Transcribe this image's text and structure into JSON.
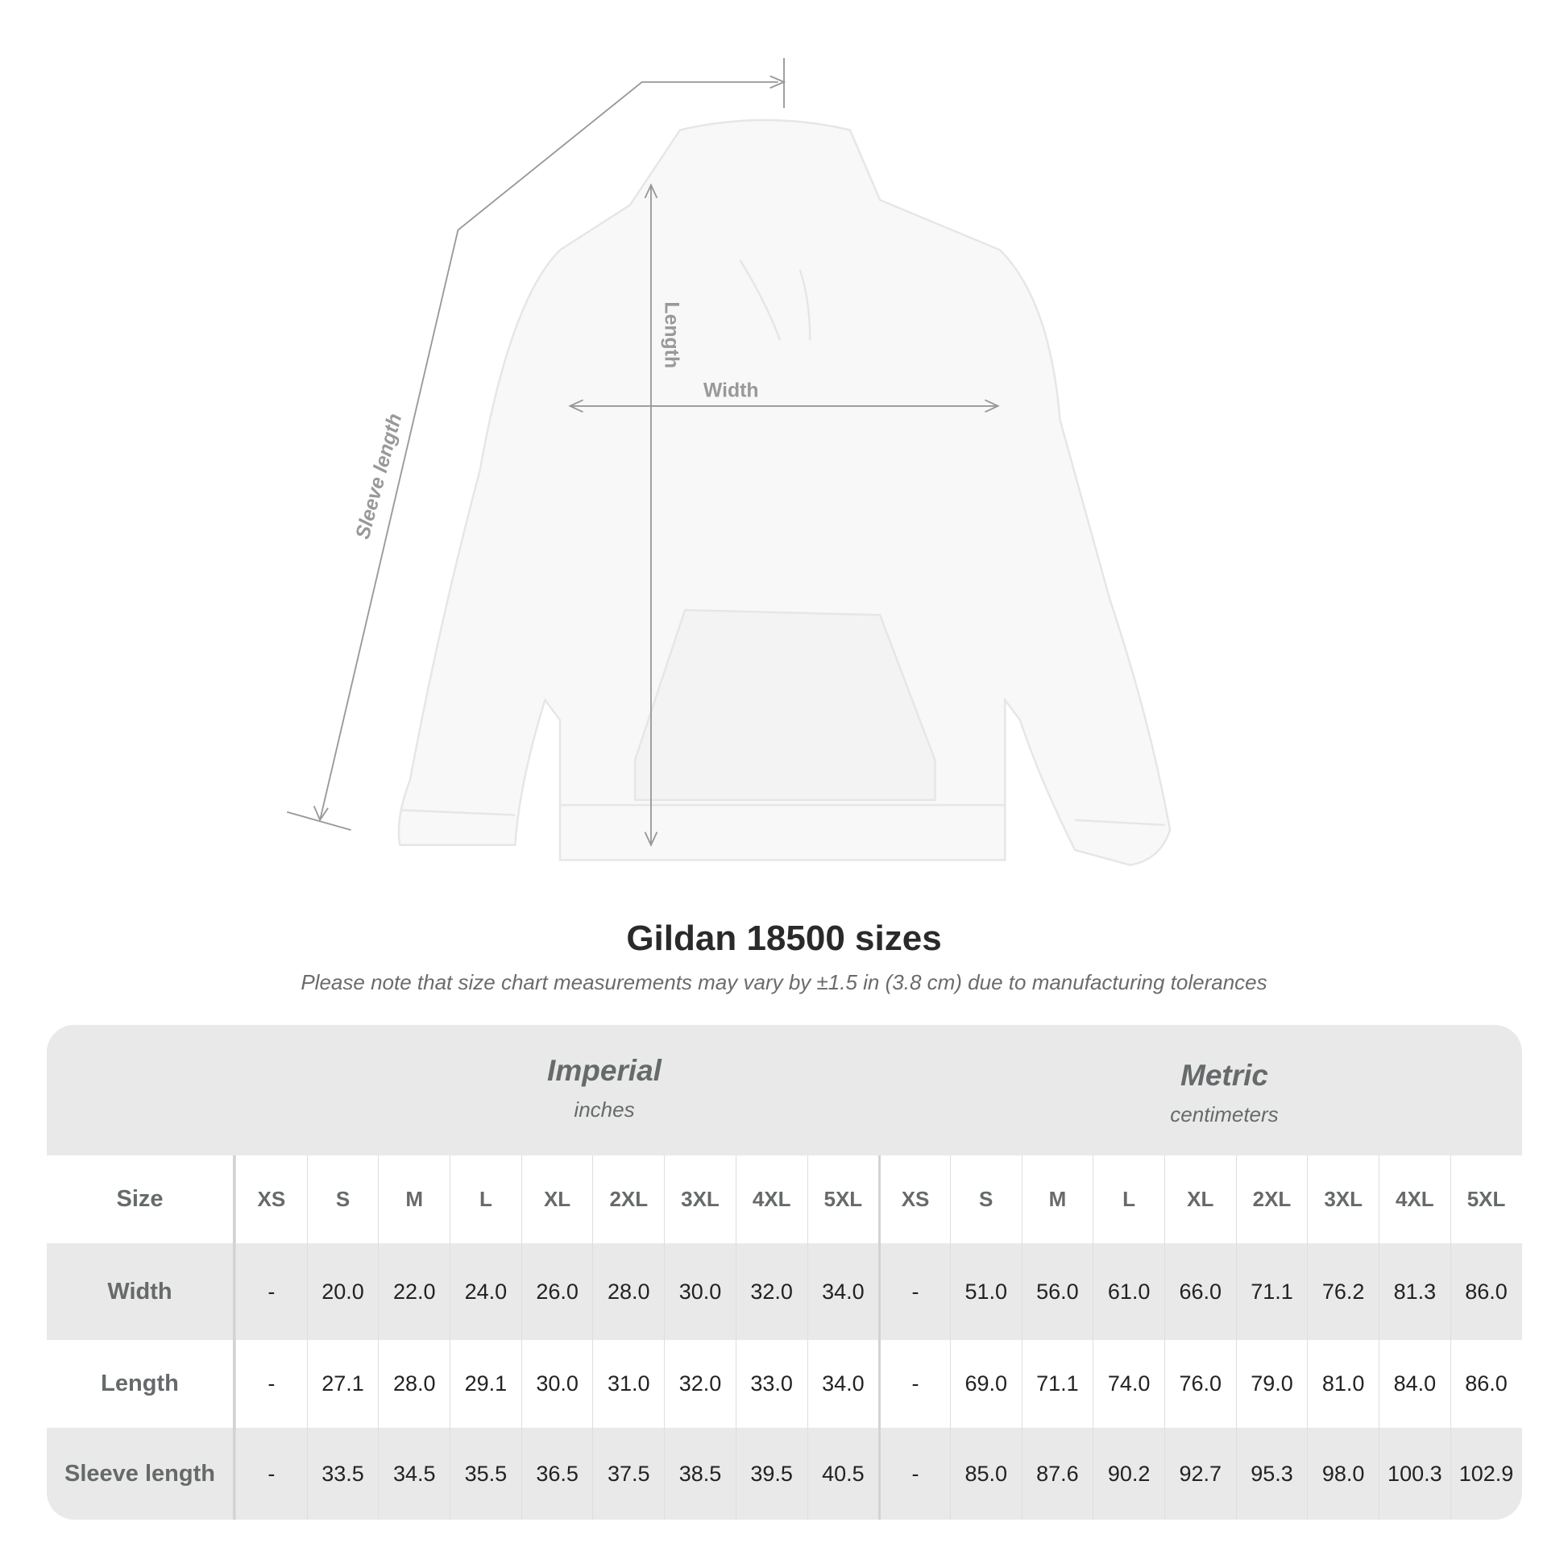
{
  "diagram": {
    "labels": {
      "sleeve": "Sleeve length",
      "length": "Length",
      "width": "Width"
    }
  },
  "title": "Gildan 18500 sizes",
  "subtitle": "Please note that size chart measurements may vary by ±1.5 in (3.8 cm) due to manufacturing tolerances",
  "table": {
    "imperial": {
      "label": "Imperial",
      "unit": "inches"
    },
    "metric": {
      "label": "Metric",
      "unit": "centimeters"
    },
    "size_label": "Size",
    "sizes": [
      "XS",
      "S",
      "M",
      "L",
      "XL",
      "2XL",
      "3XL",
      "4XL",
      "5XL"
    ],
    "rows": [
      {
        "label": "Width",
        "imperial": [
          "-",
          "20.0",
          "22.0",
          "24.0",
          "26.0",
          "28.0",
          "30.0",
          "32.0",
          "34.0"
        ],
        "metric": [
          "-",
          "51.0",
          "56.0",
          "61.0",
          "66.0",
          "71.1",
          "76.2",
          "81.3",
          "86.0"
        ]
      },
      {
        "label": "Length",
        "imperial": [
          "-",
          "27.1",
          "28.0",
          "29.1",
          "30.0",
          "31.0",
          "32.0",
          "33.0",
          "34.0"
        ],
        "metric": [
          "-",
          "69.0",
          "71.1",
          "74.0",
          "76.0",
          "79.0",
          "81.0",
          "84.0",
          "86.0"
        ]
      },
      {
        "label": "Sleeve length",
        "imperial": [
          "-",
          "33.5",
          "34.5",
          "35.5",
          "36.5",
          "37.5",
          "38.5",
          "39.5",
          "40.5"
        ],
        "metric": [
          "-",
          "85.0",
          "87.6",
          "90.2",
          "92.7",
          "95.3",
          "98.0",
          "100.3",
          "102.9"
        ]
      }
    ]
  },
  "colors": {
    "band": "#e9e9e9",
    "header_text": "#666a6a",
    "measure_line": "#999999"
  }
}
